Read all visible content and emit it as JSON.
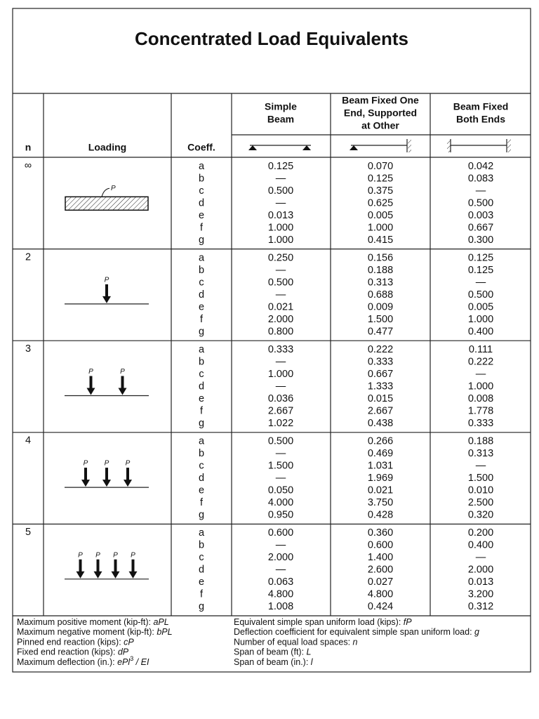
{
  "title": "Concentrated Load Equivalents",
  "table": {
    "headers": {
      "n": "n",
      "loading": "Loading",
      "coeff": "Coeff.",
      "columns": [
        [
          "Simple",
          "Beam"
        ],
        [
          "Beam Fixed One",
          "End, Supported",
          "at Other"
        ],
        [
          "Beam Fixed",
          "Both Ends"
        ]
      ]
    },
    "load_label": "P",
    "groups": [
      {
        "n": "∞",
        "rows": [
          [
            "a",
            "0.125",
            "0.070",
            "0.042"
          ],
          [
            "b",
            "—",
            "0.125",
            "0.083"
          ],
          [
            "c",
            "0.500",
            "0.375",
            "—"
          ],
          [
            "d",
            "—",
            "0.625",
            "0.500"
          ],
          [
            "e",
            "0.013",
            "0.005",
            "0.003"
          ],
          [
            "f",
            "1.000",
            "1.000",
            "0.667"
          ],
          [
            "g",
            "1.000",
            "0.415",
            "0.300"
          ]
        ]
      },
      {
        "n": "2",
        "rows": [
          [
            "a",
            "0.250",
            "0.156",
            "0.125"
          ],
          [
            "b",
            "—",
            "0.188",
            "0.125"
          ],
          [
            "c",
            "0.500",
            "0.313",
            "—"
          ],
          [
            "d",
            "—",
            "0.688",
            "0.500"
          ],
          [
            "e",
            "0.021",
            "0.009",
            "0.005"
          ],
          [
            "f",
            "2.000",
            "1.500",
            "1.000"
          ],
          [
            "g",
            "0.800",
            "0.477",
            "0.400"
          ]
        ]
      },
      {
        "n": "3",
        "rows": [
          [
            "a",
            "0.333",
            "0.222",
            "0.111"
          ],
          [
            "b",
            "—",
            "0.333",
            "0.222"
          ],
          [
            "c",
            "1.000",
            "0.667",
            "—"
          ],
          [
            "d",
            "—",
            "1.333",
            "1.000"
          ],
          [
            "e",
            "0.036",
            "0.015",
            "0.008"
          ],
          [
            "f",
            "2.667",
            "2.667",
            "1.778"
          ],
          [
            "g",
            "1.022",
            "0.438",
            "0.333"
          ]
        ]
      },
      {
        "n": "4",
        "rows": [
          [
            "a",
            "0.500",
            "0.266",
            "0.188"
          ],
          [
            "b",
            "—",
            "0.469",
            "0.313"
          ],
          [
            "c",
            "1.500",
            "1.031",
            "—"
          ],
          [
            "d",
            "—",
            "1.969",
            "1.500"
          ],
          [
            "e",
            "0.050",
            "0.021",
            "0.010"
          ],
          [
            "f",
            "4.000",
            "3.750",
            "2.500"
          ],
          [
            "g",
            "0.950",
            "0.428",
            "0.320"
          ]
        ]
      },
      {
        "n": "5",
        "rows": [
          [
            "a",
            "0.600",
            "0.360",
            "0.200"
          ],
          [
            "b",
            "—",
            "0.600",
            "0.400"
          ],
          [
            "c",
            "2.000",
            "1.400",
            "—"
          ],
          [
            "d",
            "—",
            "2.600",
            "2.000"
          ],
          [
            "e",
            "0.063",
            "0.027",
            "0.013"
          ],
          [
            "f",
            "4.800",
            "4.800",
            "3.200"
          ],
          [
            "g",
            "1.008",
            "0.424",
            "0.312"
          ]
        ]
      }
    ]
  },
  "footer": {
    "left": [
      {
        "label": "Maximum positive moment (kip-ft): ",
        "symbol": "aPL"
      },
      {
        "label": "Maximum negative moment (kip-ft): ",
        "symbol": "bPL"
      },
      {
        "label": "Pinned end reaction (kips): ",
        "symbol": "cP"
      },
      {
        "label": "Fixed end reaction (kips): ",
        "symbol": "dP"
      },
      {
        "label": "Maximum deflection (in.): ",
        "symbol": "ePl",
        "sup": "3",
        "symbol_end": " / EI"
      }
    ],
    "right": [
      {
        "label": "Equivalent simple span uniform load (kips): ",
        "symbol": "fP"
      },
      {
        "label": "Deflection coefficient for equivalent simple span uniform load: ",
        "symbol": "g"
      },
      {
        "label": "Number of equal load spaces: ",
        "symbol": "n"
      },
      {
        "label": "Span of beam (ft): ",
        "symbol": "L"
      },
      {
        "label": "Span of beam (in.): ",
        "symbol": "l"
      }
    ]
  }
}
